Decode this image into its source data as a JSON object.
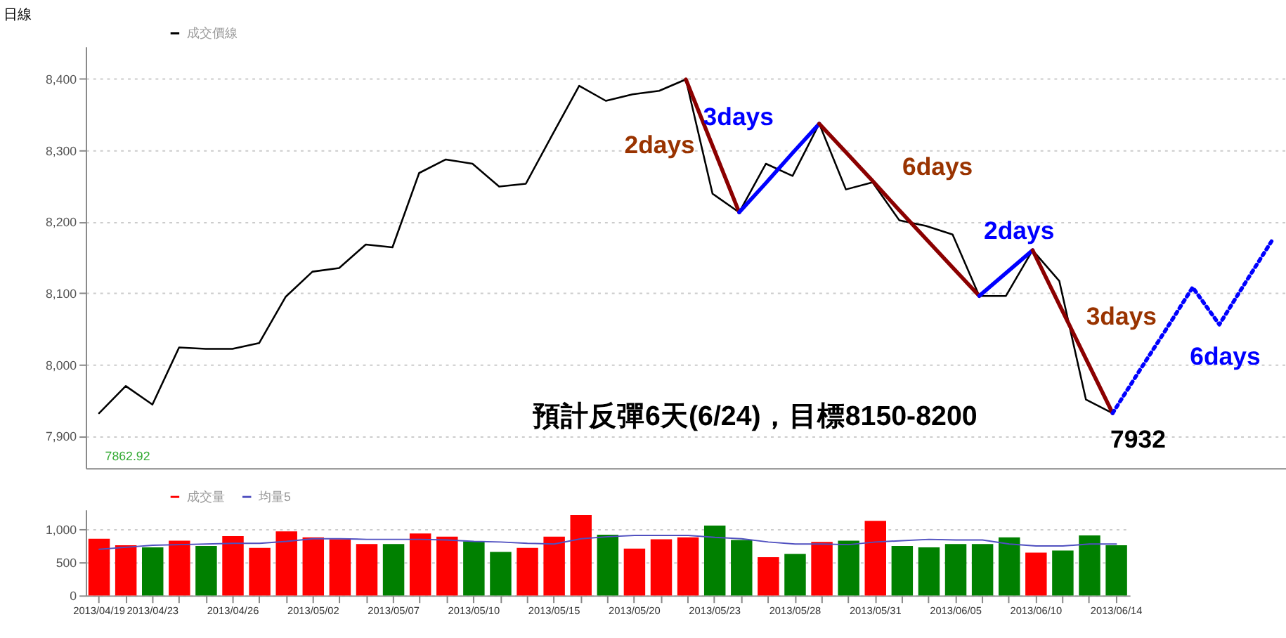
{
  "chart_data": [
    {
      "type": "line",
      "title": "日線",
      "categories": [
        null,
        null,
        null,
        null,
        null,
        null,
        null,
        null,
        null,
        null,
        null,
        null,
        null,
        null,
        null,
        null,
        null,
        null,
        null,
        null,
        null,
        null,
        null,
        null,
        null,
        null,
        null,
        null,
        null,
        null,
        null,
        null,
        null,
        null,
        null,
        null,
        null,
        null,
        null,
        null,
        null,
        null,
        null,
        null,
        null
      ],
      "ylim": [
        7855,
        8445
      ],
      "yticks": [
        {
          "value": 7900,
          "label": "7,900"
        },
        {
          "value": 8000,
          "label": "8,000"
        },
        {
          "value": 8100,
          "label": "8,100"
        },
        {
          "value": 8200,
          "label": "8,200"
        },
        {
          "value": 8300,
          "label": "8,300"
        },
        {
          "value": 8400,
          "label": "8,400"
        }
      ],
      "tick_labels": "y",
      "grid": "y",
      "legend": "top left",
      "marker": "none",
      "line_style": "solid",
      "series": [
        {
          "name": "成交價線",
          "color": "#000000",
          "values": [
            7932,
            7970,
            7944,
            8024,
            8022,
            8022,
            8030,
            8095,
            8130,
            8135,
            8168,
            8164,
            8268,
            8287,
            8281,
            8249,
            8253,
            8322,
            8390,
            8369,
            8378,
            8383,
            8399,
            8239,
            8213,
            8281,
            8264,
            8337,
            8245,
            8255,
            8202,
            8194,
            8182,
            8096,
            8096,
            8160,
            8117,
            7951,
            7932,
            null,
            null,
            null,
            null,
            null,
            null
          ]
        },
        {
          "color": "#8b0000",
          "values": [
            null,
            null,
            null,
            null,
            null,
            null,
            null,
            null,
            null,
            null,
            null,
            null,
            null,
            null,
            null,
            null,
            null,
            null,
            null,
            null,
            null,
            null,
            8399,
            8306,
            8213,
            null,
            null,
            null,
            null,
            null,
            null,
            null,
            null,
            null,
            null,
            null,
            null,
            null,
            null,
            null,
            null,
            null,
            null,
            null,
            null
          ]
        },
        {
          "color": "#0000ff",
          "values": [
            null,
            null,
            null,
            null,
            null,
            null,
            null,
            null,
            null,
            null,
            null,
            null,
            null,
            null,
            null,
            null,
            null,
            null,
            null,
            null,
            null,
            null,
            null,
            null,
            8213,
            8254,
            8296,
            8337,
            null,
            null,
            null,
            null,
            null,
            null,
            null,
            null,
            null,
            null,
            null,
            null,
            null,
            null,
            null,
            null,
            null
          ]
        },
        {
          "color": "#8b0000",
          "values": [
            null,
            null,
            null,
            null,
            null,
            null,
            null,
            null,
            null,
            null,
            null,
            null,
            null,
            null,
            null,
            null,
            null,
            null,
            null,
            null,
            null,
            null,
            null,
            null,
            null,
            null,
            null,
            8337,
            8297,
            8257,
            8216,
            8176,
            8136,
            8096,
            null,
            null,
            null,
            null,
            null,
            null,
            null,
            null,
            null,
            null,
            null
          ]
        },
        {
          "color": "#0000ff",
          "values": [
            null,
            null,
            null,
            null,
            null,
            null,
            null,
            null,
            null,
            null,
            null,
            null,
            null,
            null,
            null,
            null,
            null,
            null,
            null,
            null,
            null,
            null,
            null,
            null,
            null,
            null,
            null,
            null,
            null,
            null,
            null,
            null,
            null,
            8096,
            8128,
            8160,
            null,
            null,
            null,
            null,
            null,
            null,
            null,
            null,
            null
          ]
        },
        {
          "color": "#8b0000",
          "values": [
            null,
            null,
            null,
            null,
            null,
            null,
            null,
            null,
            null,
            null,
            null,
            null,
            null,
            null,
            null,
            null,
            null,
            null,
            null,
            null,
            null,
            null,
            null,
            null,
            null,
            null,
            null,
            null,
            null,
            null,
            null,
            null,
            null,
            null,
            null,
            8160,
            8084,
            8008,
            7932,
            null,
            null,
            null,
            null,
            null,
            null
          ]
        },
        {
          "color": "#0000ff",
          "line_style": "dotted",
          "values": [
            null,
            null,
            null,
            null,
            null,
            null,
            null,
            null,
            null,
            null,
            null,
            null,
            null,
            null,
            null,
            null,
            null,
            null,
            null,
            null,
            null,
            null,
            null,
            null,
            null,
            null,
            null,
            null,
            null,
            null,
            null,
            null,
            null,
            null,
            null,
            null,
            null,
            null,
            7932,
            7991,
            8049,
            8108,
            8056,
            8116,
            8175
          ]
        }
      ],
      "annotations": [
        "2days",
        "3days",
        "6days",
        "2days",
        "3days",
        "6days",
        "7932",
        "預計反彈6天(6/24)，目標8150-8200",
        "7862.92"
      ]
    },
    {
      "type": "bar",
      "categories": [
        "2013/04/19",
        null,
        "2013/04/23",
        null,
        null,
        "2013/04/26",
        null,
        null,
        "2013/05/02",
        null,
        null,
        "2013/05/07",
        null,
        null,
        "2013/05/10",
        null,
        null,
        "2013/05/15",
        null,
        null,
        "2013/05/20",
        null,
        null,
        "2013/05/23",
        null,
        null,
        "2013/05/28",
        null,
        null,
        "2013/05/31",
        null,
        null,
        "2013/06/05",
        null,
        null,
        "2013/06/10",
        null,
        null,
        "2013/06/14"
      ],
      "ylim": [
        0,
        1300
      ],
      "yticks": [
        0,
        500,
        {
          "value": 1000,
          "label": "1,000"
        }
      ],
      "grid": "y",
      "legend": "top left",
      "line_style": "solid",
      "series": [
        {
          "name": "成交量",
          "type": "bar",
          "color": "#ff0000",
          "colors": [
            "#ff0000",
            "#ff0000",
            "#008000",
            "#ff0000",
            "#008000",
            "#ff0000",
            "#ff0000",
            "#ff0000",
            "#ff0000",
            "#ff0000",
            "#ff0000",
            "#008000",
            "#ff0000",
            "#ff0000",
            "#008000",
            "#008000",
            "#ff0000",
            "#ff0000",
            "#ff0000",
            "#008000",
            "#ff0000",
            "#ff0000",
            "#ff0000",
            "#008000",
            "#008000",
            "#ff0000",
            "#008000",
            "#ff0000",
            "#008000",
            "#ff0000",
            "#008000",
            "#008000",
            "#008000",
            "#008000",
            "#008000",
            "#ff0000",
            "#008000",
            "#008000",
            "#008000"
          ],
          "values": [
            860,
            760,
            730,
            830,
            750,
            900,
            720,
            970,
            880,
            850,
            780,
            780,
            940,
            890,
            820,
            660,
            720,
            890,
            1220,
            920,
            710,
            850,
            880,
            1060,
            840,
            580,
            630,
            810,
            830,
            1130,
            750,
            730,
            780,
            780,
            880,
            650,
            680,
            910,
            760
          ]
        },
        {
          "name": "均量5",
          "type": "line",
          "color": "#5050c0",
          "values": [
            700,
            730,
            760,
            770,
            780,
            790,
            790,
            820,
            860,
            860,
            850,
            850,
            850,
            840,
            820,
            810,
            790,
            780,
            860,
            890,
            910,
            910,
            910,
            880,
            860,
            810,
            780,
            780,
            770,
            810,
            830,
            850,
            840,
            840,
            780,
            750,
            750,
            780,
            780
          ]
        }
      ]
    }
  ]
}
